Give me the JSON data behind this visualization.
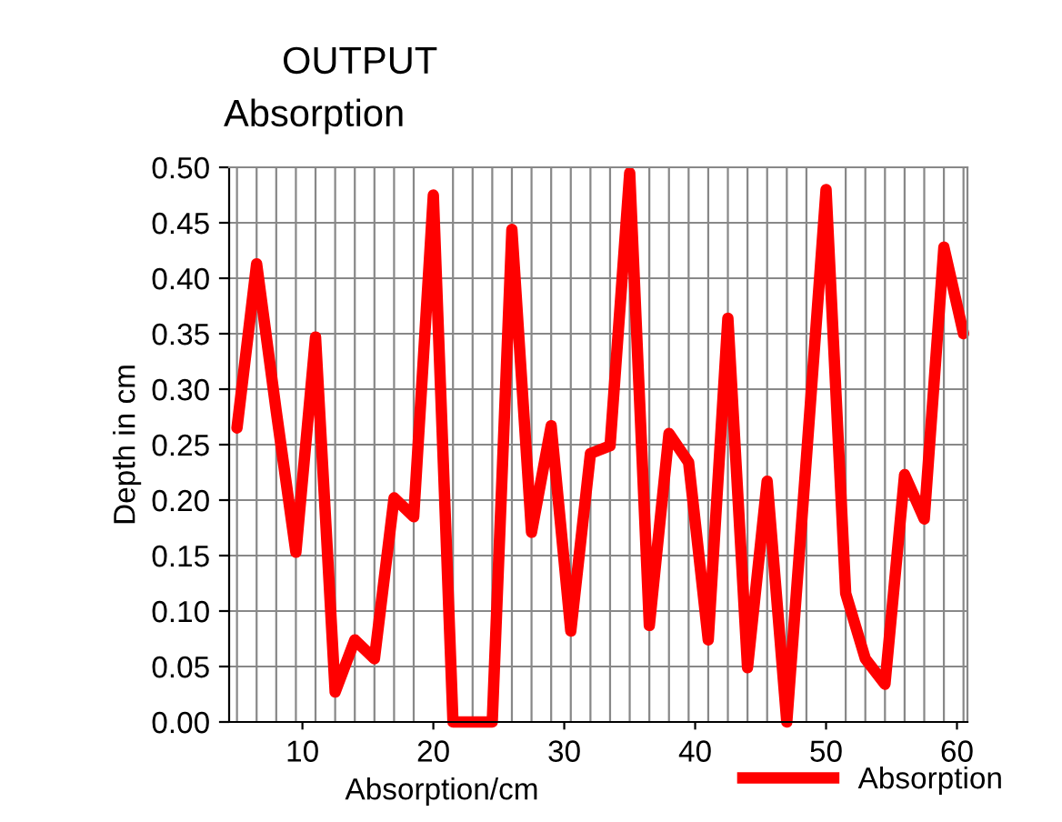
{
  "chart_data": {
    "type": "line",
    "title": "OUTPUT",
    "subtitle": "Absorption",
    "xlabel": "Absorption/cm",
    "ylabel": "Depth in cm",
    "x": [
      5,
      6.5,
      8,
      9.5,
      11,
      12.5,
      14,
      15.5,
      17,
      18.5,
      20,
      21.5,
      23,
      24.5,
      26,
      27.5,
      29,
      30.5,
      32,
      33.5,
      35,
      36.5,
      38,
      39.5,
      41,
      42.5,
      44,
      45.5,
      47,
      48.5,
      50,
      51.5,
      53,
      54.5,
      56,
      57.5,
      59,
      60.5
    ],
    "series": [
      {
        "name": "Absorption",
        "color": "#ff0000",
        "values": [
          0.265,
          0.413,
          0.28,
          0.153,
          0.347,
          0.027,
          0.074,
          0.057,
          0.202,
          0.185,
          0.475,
          0,
          0,
          0,
          0.444,
          0.171,
          0.267,
          0.082,
          0.242,
          0.249,
          0.495,
          0.087,
          0.26,
          0.234,
          0.074,
          0.364,
          0.049,
          0.217,
          0,
          0.238,
          0.48,
          0.116,
          0.057,
          0.034,
          0.223,
          0.183,
          0.428,
          0.35
        ]
      }
    ],
    "xlim": [
      4.4,
      60.8
    ],
    "ylim": [
      0,
      0.5
    ],
    "xticks": [
      10,
      20,
      30,
      40,
      50,
      60
    ],
    "yticks": [
      {
        "value": 0,
        "label": "0.00"
      },
      {
        "value": 0.05,
        "label": "0.05"
      },
      {
        "value": 0.1,
        "label": "0.10"
      },
      {
        "value": 0.15,
        "label": "0.15"
      },
      {
        "value": 0.2,
        "label": "0.20"
      },
      {
        "value": 0.25,
        "label": "0.25"
      },
      {
        "value": 0.3,
        "label": "0.30"
      },
      {
        "value": 0.35,
        "label": "0.35"
      },
      {
        "value": 0.4,
        "label": "0.40"
      },
      {
        "value": 0.45,
        "label": "0.45"
      },
      {
        "value": 0.5,
        "label": "0.50"
      }
    ],
    "grid": true,
    "legend": "bottom",
    "marker": "none",
    "line_style": "solid"
  }
}
